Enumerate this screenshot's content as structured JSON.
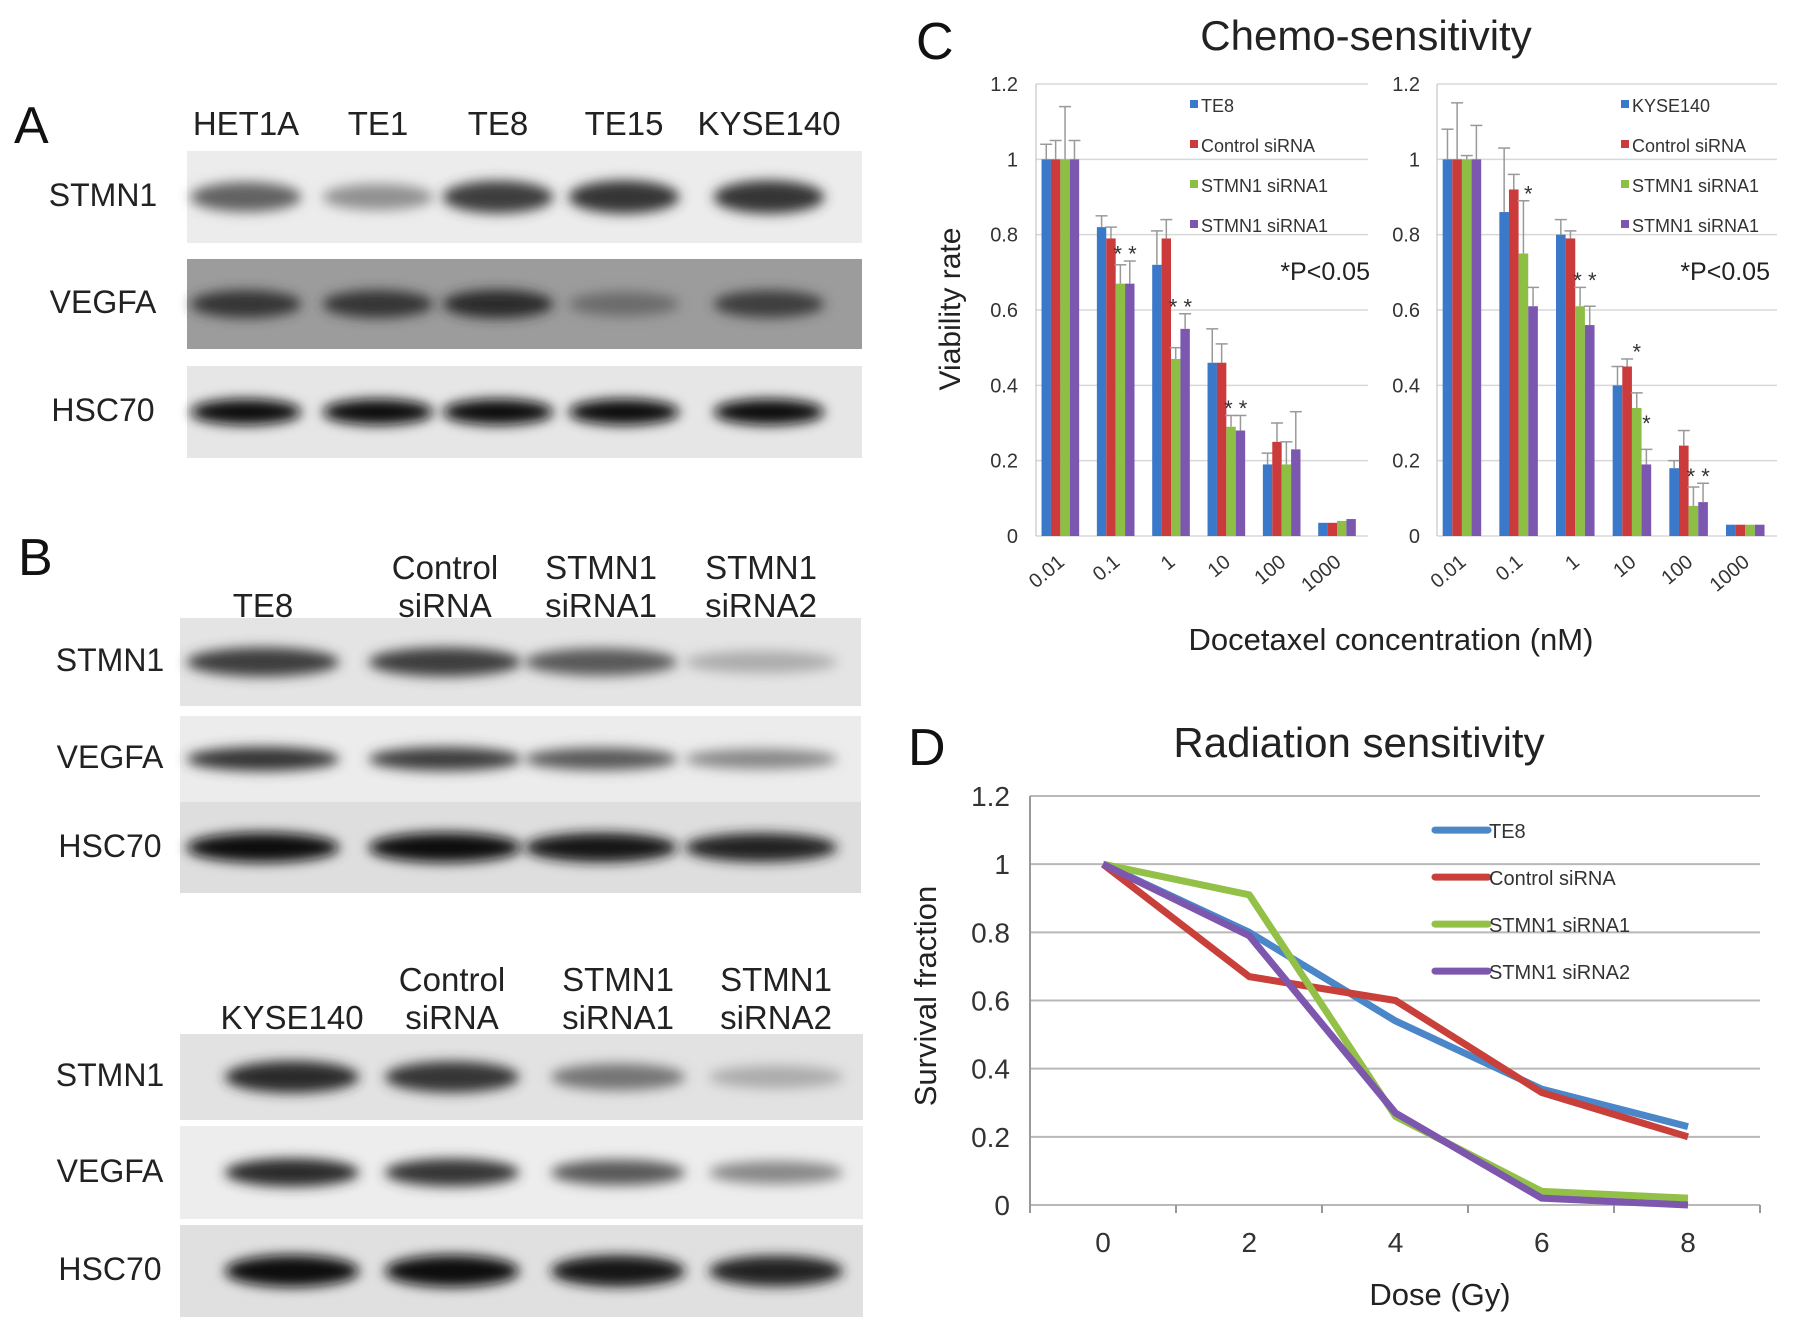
{
  "panels": {
    "A": "A",
    "B": "B",
    "C": "C",
    "D": "D"
  },
  "blots": {
    "A": {
      "lanes": [
        "HET1A",
        "TE1",
        "TE8",
        "TE15",
        "KYSE140"
      ],
      "rows": [
        {
          "label": "STMN1",
          "background": "#ececec",
          "band_intensity": [
            0.55,
            0.3,
            0.75,
            0.8,
            0.8
          ]
        },
        {
          "label": "VEGFA",
          "background": "#9c9c9c",
          "band_intensity": [
            0.8,
            0.8,
            0.85,
            0.5,
            0.75
          ]
        },
        {
          "label": "HSC70",
          "background": "#e6e6e6",
          "band_intensity": [
            1,
            1,
            1,
            1,
            1
          ]
        }
      ]
    },
    "B1": {
      "lanes": [
        [
          "TE8"
        ],
        [
          "Control",
          "siRNA"
        ],
        [
          "STMN1",
          "siRNA1"
        ],
        [
          "STMN1",
          "siRNA2"
        ]
      ],
      "rows": [
        {
          "label": "STMN1",
          "background": "#e4e4e4",
          "band_intensity": [
            0.75,
            0.75,
            0.6,
            0.15
          ]
        },
        {
          "label": "VEGFA",
          "background": "#ececec",
          "band_intensity": [
            0.8,
            0.75,
            0.6,
            0.35
          ]
        },
        {
          "label": "HSC70",
          "background": "#dedede",
          "band_intensity": [
            1,
            1,
            0.95,
            0.9
          ]
        }
      ]
    },
    "B2": {
      "lanes": [
        [
          "KYSE140"
        ],
        [
          "Control",
          "siRNA"
        ],
        [
          "STMN1",
          "siRNA1"
        ],
        [
          "STMN1",
          "siRNA2"
        ]
      ],
      "rows": [
        {
          "label": "STMN1",
          "background": "#e2e2e2",
          "band_intensity": [
            0.85,
            0.8,
            0.45,
            0.15
          ]
        },
        {
          "label": "VEGFA",
          "background": "#ededed",
          "band_intensity": [
            0.85,
            0.8,
            0.6,
            0.35
          ]
        },
        {
          "label": "HSC70",
          "background": "#e0e0e0",
          "band_intensity": [
            1,
            1,
            0.95,
            0.9
          ]
        }
      ]
    }
  },
  "chart_data": [
    {
      "type": "bar",
      "title": "Chemo-sensitivity",
      "ylabel": "Viability rate",
      "xlabel": "Docetaxel concentration (nM)",
      "ylim": [
        0,
        1.2
      ],
      "yticks": [
        "0",
        "0.2",
        "0.4",
        "0.6",
        "0.8",
        "1",
        "1.2"
      ],
      "categories": [
        "0.01",
        "0.1",
        "1",
        "10",
        "100",
        "1000"
      ],
      "grid": true,
      "legend": "top-right",
      "annotation": "*P<0.05",
      "series": [
        {
          "name": "TE8",
          "color": "#3a78c9",
          "values": [
            1,
            0.82,
            0.72,
            0.46,
            0.19,
            0.035
          ],
          "errors": [
            0.04,
            0.03,
            0.09,
            0.09,
            0.03,
            0
          ]
        },
        {
          "name": "Control siRNA",
          "color": "#cc3b3b",
          "values": [
            1,
            0.79,
            0.79,
            0.46,
            0.25,
            0.035
          ],
          "errors": [
            0.05,
            0.03,
            0.05,
            0.05,
            0.05,
            0
          ]
        },
        {
          "name": "STMN1 siRNA1",
          "color": "#8dbf45",
          "values": [
            1,
            0.67,
            0.47,
            0.29,
            0.19,
            0.04
          ],
          "errors": [
            0.14,
            0.05,
            0.03,
            0.03,
            0.06,
            0
          ]
        },
        {
          "name": "STMN1 siRNA1",
          "color": "#7b57b0",
          "values": [
            1,
            0.67,
            0.55,
            0.28,
            0.23,
            0.045
          ],
          "errors": [
            0.05,
            0.06,
            0.04,
            0.04,
            0.1,
            0
          ]
        }
      ],
      "significance": [
        {
          "category": "0.1",
          "marks": "* *"
        },
        {
          "category": "1",
          "marks": "* *"
        },
        {
          "category": "10",
          "marks": "* *"
        }
      ]
    },
    {
      "type": "bar",
      "ylim": [
        0,
        1.2
      ],
      "yticks": [
        "0",
        "0.2",
        "0.4",
        "0.6",
        "0.8",
        "1",
        "1.2"
      ],
      "categories": [
        "0.01",
        "0.1",
        "1",
        "10",
        "100",
        "1000"
      ],
      "grid": true,
      "legend": "top-right",
      "annotation": "*P<0.05",
      "series": [
        {
          "name": "KYSE140",
          "color": "#3a78c9",
          "values": [
            1,
            0.86,
            0.8,
            0.4,
            0.18,
            0.03
          ],
          "errors": [
            0.08,
            0.17,
            0.04,
            0.05,
            0.02,
            0
          ]
        },
        {
          "name": "Control siRNA",
          "color": "#cc3b3b",
          "values": [
            1,
            0.92,
            0.79,
            0.45,
            0.24,
            0.03
          ],
          "errors": [
            0.15,
            0.04,
            0.02,
            0.02,
            0.04,
            0
          ]
        },
        {
          "name": "STMN1 siRNA1",
          "color": "#8dbf45",
          "values": [
            1,
            0.75,
            0.61,
            0.34,
            0.08,
            0.03
          ],
          "errors": [
            0.01,
            0.14,
            0.05,
            0.04,
            0.05,
            0
          ]
        },
        {
          "name": "STMN1 siRNA1",
          "color": "#7b57b0",
          "values": [
            1,
            0.61,
            0.56,
            0.19,
            0.09,
            0.03
          ],
          "errors": [
            0.09,
            0.05,
            0.05,
            0.04,
            0.05,
            0
          ]
        }
      ],
      "significance": [
        {
          "category": "0.1",
          "marks": "*"
        },
        {
          "category": "1",
          "marks": "* *"
        },
        {
          "category": "10",
          "marks": "*"
        },
        {
          "category": "10",
          "marks": "*"
        },
        {
          "category": "100",
          "marks": "* *"
        }
      ]
    },
    {
      "type": "line",
      "title": "Radiation sensitivity",
      "xlabel": "Dose (Gy)",
      "ylabel": "Survival fraction",
      "x": [
        0,
        2,
        4,
        6,
        8
      ],
      "xticks": [
        "0",
        "2",
        "4",
        "6",
        "8"
      ],
      "ylim": [
        0,
        1.2
      ],
      "yticks": [
        "0",
        "0.2",
        "0.4",
        "0.6",
        "0.8",
        "1",
        "1.2"
      ],
      "grid": true,
      "legend": "top-right",
      "series": [
        {
          "name": "TE8",
          "color": "#4a86c8",
          "values": [
            1,
            0.8,
            0.54,
            0.34,
            0.23
          ]
        },
        {
          "name": "Control siRNA",
          "color": "#c9403a",
          "values": [
            1,
            0.67,
            0.6,
            0.33,
            0.2
          ]
        },
        {
          "name": "STMN1 siRNA1",
          "color": "#93c047",
          "values": [
            1,
            0.91,
            0.26,
            0.04,
            0.02
          ]
        },
        {
          "name": "STMN1 siRNA2",
          "color": "#7d56ae",
          "values": [
            1,
            0.79,
            0.27,
            0.02,
            0.0
          ]
        }
      ]
    }
  ]
}
